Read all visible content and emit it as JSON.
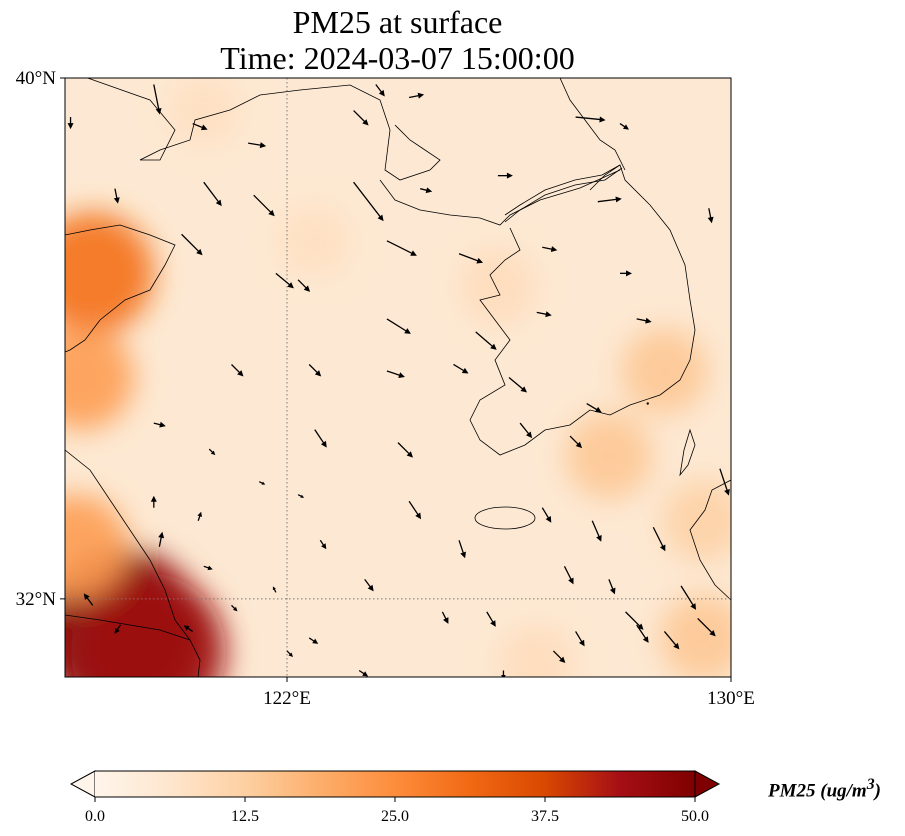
{
  "title": {
    "line1": "PM25 at surface",
    "line2": "Time: 2024-03-07 15:00:00"
  },
  "map": {
    "lon_range": [
      118,
      130
    ],
    "lat_range": [
      30.8,
      40
    ],
    "lat_ticks": [
      "40°N",
      "32°N"
    ],
    "lon_ticks": [
      "122°E",
      "130°E"
    ],
    "gridlines": {
      "lon": [
        122
      ],
      "lat": [
        32
      ]
    },
    "coastline_color": "#000000",
    "gridline_color": "#777777"
  },
  "colorbar": {
    "label_text": "PM25 (ug/m",
    "label_sup": "3",
    "label_close": ")",
    "ticks": [
      "0.0",
      "12.5",
      "25.0",
      "37.5",
      "50.0"
    ],
    "min": 0,
    "max": 50,
    "colormap": [
      "#fff5eb",
      "#fee6ce",
      "#fdd0a2",
      "#fdae6b",
      "#fd8d3c",
      "#f16913",
      "#d94801",
      "#a50f15",
      "#7f0000"
    ],
    "extend": "both"
  },
  "pm25_field": {
    "description_hidden": false,
    "hotspots": [
      {
        "lon": 118.5,
        "lat": 37.0,
        "value": 30
      },
      {
        "lon": 118.3,
        "lat": 35.4,
        "value": 22
      },
      {
        "lon": 119.0,
        "lat": 31.5,
        "value": 50
      },
      {
        "lon": 119.5,
        "lat": 31.2,
        "value": 45
      },
      {
        "lon": 118.2,
        "lat": 32.8,
        "value": 22
      },
      {
        "lon": 127.8,
        "lat": 34.2,
        "value": 14
      },
      {
        "lon": 128.8,
        "lat": 35.5,
        "value": 14
      },
      {
        "lon": 129.5,
        "lat": 31.4,
        "value": 14
      },
      {
        "lon": 129.5,
        "lat": 33.2,
        "value": 12
      },
      {
        "lon": 120.5,
        "lat": 39.5,
        "value": 8
      },
      {
        "lon": 122.5,
        "lat": 37.5,
        "value": 8
      },
      {
        "lon": 125.8,
        "lat": 36.8,
        "value": 9
      },
      {
        "lon": 126.5,
        "lat": 31.0,
        "value": 9
      }
    ]
  },
  "wind": [
    {
      "lon": 119.6,
      "lat": 39.9,
      "u": 0.2,
      "v": -1.0
    },
    {
      "lon": 120.3,
      "lat": 39.3,
      "u": 0.5,
      "v": -0.2
    },
    {
      "lon": 121.3,
      "lat": 39.0,
      "u": 0.6,
      "v": -0.1
    },
    {
      "lon": 123.6,
      "lat": 39.9,
      "u": 0.3,
      "v": -0.4
    },
    {
      "lon": 123.2,
      "lat": 39.5,
      "u": 0.5,
      "v": -0.5
    },
    {
      "lon": 124.2,
      "lat": 39.7,
      "u": 0.5,
      "v": 0.1
    },
    {
      "lon": 127.2,
      "lat": 39.4,
      "u": 1.0,
      "v": -0.1
    },
    {
      "lon": 128.0,
      "lat": 39.3,
      "u": 0.3,
      "v": -0.2
    },
    {
      "lon": 118.9,
      "lat": 38.3,
      "u": 0.1,
      "v": -0.5
    },
    {
      "lon": 118.1,
      "lat": 39.4,
      "u": 0.0,
      "v": -0.4
    },
    {
      "lon": 120.5,
      "lat": 38.4,
      "u": 0.6,
      "v": -0.8
    },
    {
      "lon": 121.4,
      "lat": 38.2,
      "u": 0.7,
      "v": -0.7
    },
    {
      "lon": 123.2,
      "lat": 38.4,
      "u": 1.0,
      "v": -1.3
    },
    {
      "lon": 124.4,
      "lat": 38.3,
      "u": 0.4,
      "v": -0.1
    },
    {
      "lon": 125.8,
      "lat": 38.5,
      "u": 0.5,
      "v": 0.0
    },
    {
      "lon": 127.6,
      "lat": 38.1,
      "u": 0.8,
      "v": 0.1
    },
    {
      "lon": 129.6,
      "lat": 38.0,
      "u": 0.1,
      "v": -0.5
    },
    {
      "lon": 120.1,
      "lat": 37.6,
      "u": 0.7,
      "v": -0.7
    },
    {
      "lon": 121.8,
      "lat": 37.0,
      "u": 0.6,
      "v": -0.5
    },
    {
      "lon": 123.8,
      "lat": 37.5,
      "u": 1.0,
      "v": -0.5
    },
    {
      "lon": 125.1,
      "lat": 37.3,
      "u": 0.8,
      "v": -0.3
    },
    {
      "lon": 126.6,
      "lat": 37.4,
      "u": 0.5,
      "v": -0.1
    },
    {
      "lon": 128.0,
      "lat": 37.0,
      "u": 0.4,
      "v": 0.0
    },
    {
      "lon": 122.2,
      "lat": 36.9,
      "u": 0.4,
      "v": -0.4
    },
    {
      "lon": 123.8,
      "lat": 36.3,
      "u": 0.8,
      "v": -0.5
    },
    {
      "lon": 125.4,
      "lat": 36.1,
      "u": 0.7,
      "v": -0.6
    },
    {
      "lon": 126.5,
      "lat": 36.4,
      "u": 0.5,
      "v": -0.1
    },
    {
      "lon": 128.3,
      "lat": 36.3,
      "u": 0.5,
      "v": -0.1
    },
    {
      "lon": 121.0,
      "lat": 35.6,
      "u": 0.4,
      "v": -0.4
    },
    {
      "lon": 122.4,
      "lat": 35.6,
      "u": 0.4,
      "v": -0.4
    },
    {
      "lon": 123.8,
      "lat": 35.5,
      "u": 0.6,
      "v": -0.2
    },
    {
      "lon": 125.0,
      "lat": 35.6,
      "u": 0.5,
      "v": -0.3
    },
    {
      "lon": 126.0,
      "lat": 35.4,
      "u": 0.6,
      "v": -0.5
    },
    {
      "lon": 127.4,
      "lat": 35.0,
      "u": 0.5,
      "v": -0.3
    },
    {
      "lon": 128.5,
      "lat": 35.0,
      "u": 0.0,
      "v": 0.0
    },
    {
      "lon": 119.6,
      "lat": 34.7,
      "u": 0.4,
      "v": -0.1
    },
    {
      "lon": 120.6,
      "lat": 34.3,
      "u": 0.2,
      "v": -0.2
    },
    {
      "lon": 122.5,
      "lat": 34.6,
      "u": 0.4,
      "v": -0.6
    },
    {
      "lon": 124.0,
      "lat": 34.4,
      "u": 0.5,
      "v": -0.5
    },
    {
      "lon": 126.2,
      "lat": 34.7,
      "u": 0.4,
      "v": -0.5
    },
    {
      "lon": 127.1,
      "lat": 34.5,
      "u": 0.4,
      "v": -0.4
    },
    {
      "lon": 129.8,
      "lat": 34.0,
      "u": 0.3,
      "v": -0.9
    },
    {
      "lon": 121.5,
      "lat": 33.8,
      "u": 0.2,
      "v": -0.1
    },
    {
      "lon": 122.2,
      "lat": 33.6,
      "u": 0.2,
      "v": -0.1
    },
    {
      "lon": 124.2,
      "lat": 33.5,
      "u": 0.4,
      "v": -0.6
    },
    {
      "lon": 125.1,
      "lat": 32.9,
      "u": 0.2,
      "v": -0.6
    },
    {
      "lon": 126.6,
      "lat": 33.4,
      "u": 0.3,
      "v": -0.5
    },
    {
      "lon": 127.5,
      "lat": 33.2,
      "u": 0.3,
      "v": -0.7
    },
    {
      "lon": 128.6,
      "lat": 33.1,
      "u": 0.4,
      "v": -0.8
    },
    {
      "lon": 120.5,
      "lat": 32.5,
      "u": 0.3,
      "v": -0.1
    },
    {
      "lon": 121.0,
      "lat": 31.9,
      "u": 0.2,
      "v": -0.2
    },
    {
      "lon": 122.4,
      "lat": 31.4,
      "u": 0.3,
      "v": -0.2
    },
    {
      "lon": 124.8,
      "lat": 31.8,
      "u": 0.2,
      "v": -0.4
    },
    {
      "lon": 126.8,
      "lat": 31.2,
      "u": 0.4,
      "v": -0.4
    },
    {
      "lon": 128.1,
      "lat": 31.8,
      "u": 0.6,
      "v": -0.6
    },
    {
      "lon": 129.1,
      "lat": 32.2,
      "u": 0.5,
      "v": -0.8
    },
    {
      "lon": 129.4,
      "lat": 31.7,
      "u": 0.6,
      "v": -0.6
    },
    {
      "lon": 122.6,
      "lat": 32.9,
      "u": 0.2,
      "v": -0.3
    },
    {
      "lon": 123.4,
      "lat": 32.3,
      "u": 0.3,
      "v": -0.4
    },
    {
      "lon": 125.6,
      "lat": 31.8,
      "u": 0.3,
      "v": -0.5
    },
    {
      "lon": 127.0,
      "lat": 32.5,
      "u": 0.3,
      "v": -0.6
    },
    {
      "lon": 127.8,
      "lat": 32.3,
      "u": 0.2,
      "v": -0.5
    },
    {
      "lon": 128.3,
      "lat": 31.6,
      "u": 0.4,
      "v": -0.6
    },
    {
      "lon": 125.9,
      "lat": 30.9,
      "u": 0.0,
      "v": -0.3
    },
    {
      "lon": 123.3,
      "lat": 30.9,
      "u": 0.3,
      "v": -0.2
    },
    {
      "lon": 121.8,
      "lat": 32.1,
      "u": -0.1,
      "v": 0.2
    },
    {
      "lon": 120.3,
      "lat": 31.5,
      "u": -0.3,
      "v": 0.2
    },
    {
      "lon": 119.7,
      "lat": 32.8,
      "u": 0.1,
      "v": 0.5
    },
    {
      "lon": 119.6,
      "lat": 33.4,
      "u": 0.0,
      "v": 0.4
    },
    {
      "lon": 122.0,
      "lat": 31.2,
      "u": 0.2,
      "v": -0.2
    },
    {
      "lon": 120.4,
      "lat": 33.2,
      "u": 0.1,
      "v": 0.3
    },
    {
      "lon": 118.5,
      "lat": 31.9,
      "u": -0.3,
      "v": 0.4
    },
    {
      "lon": 119.0,
      "lat": 31.6,
      "u": -0.2,
      "v": -0.3
    },
    {
      "lon": 127.2,
      "lat": 31.5,
      "u": 0.3,
      "v": -0.5
    },
    {
      "lon": 128.8,
      "lat": 31.5,
      "u": 0.5,
      "v": -0.6
    }
  ]
}
